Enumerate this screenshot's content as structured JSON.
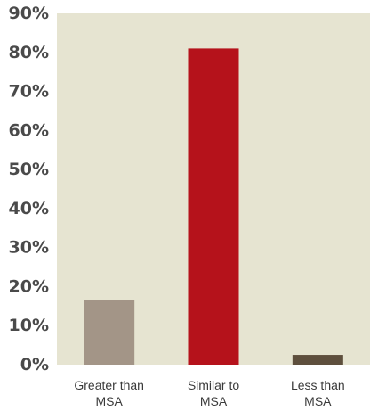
{
  "chart_data": {
    "type": "bar",
    "categories": [
      [
        "Greater than",
        "MSA"
      ],
      [
        "Similar to",
        "MSA"
      ],
      [
        "Less than",
        "MSA"
      ]
    ],
    "values": [
      16.5,
      81,
      2.5
    ],
    "bar_colors": [
      "#a39587",
      "#b5121b",
      "#5e4f3d"
    ],
    "ylim": [
      0,
      90
    ],
    "yticks": [
      "0%",
      "10%",
      "20%",
      "30%",
      "40%",
      "50%",
      "60%",
      "70%",
      "80%",
      "90%"
    ],
    "grid": false,
    "background_color": "#e6e4d1",
    "axis_color": "#ffffff",
    "title": "",
    "xlabel": "",
    "ylabel": ""
  }
}
